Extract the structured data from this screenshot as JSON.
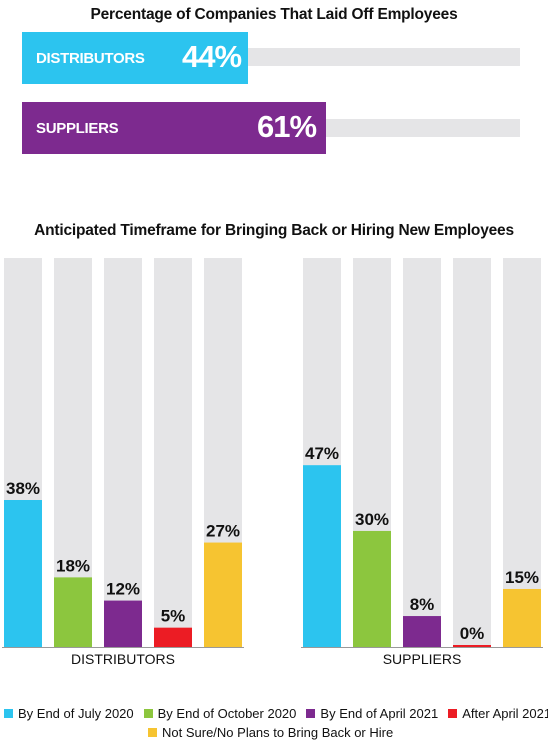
{
  "colors": {
    "track": "#e5e5e7",
    "cyan": "#2cc4ef",
    "green": "#8cc63e",
    "purple": "#7d2a8f",
    "red": "#ec1c24",
    "yellow": "#f6c431"
  },
  "chart_data": [
    {
      "type": "bar",
      "orientation": "horizontal",
      "title": "Percentage of Companies That Laid Off Employees",
      "categories": [
        "DISTRIBUTORS",
        "SUPPLIERS"
      ],
      "values": [
        44,
        61
      ],
      "value_labels": [
        "44%",
        "61%"
      ],
      "colors": [
        "#2cc4ef",
        "#7d2a8f"
      ],
      "xlim": [
        0,
        100
      ]
    },
    {
      "type": "bar",
      "title": "Anticipated Timeframe for Bringing Back or Hiring New Employees",
      "groups": [
        "DISTRIBUTORS",
        "SUPPLIERS"
      ],
      "ylim": [
        0,
        100
      ],
      "series": [
        {
          "name": "By End of July 2020",
          "color": "#2cc4ef",
          "values": [
            38,
            47
          ],
          "labels": [
            "38%",
            "47%"
          ]
        },
        {
          "name": "By End of October 2020",
          "color": "#8cc63e",
          "values": [
            18,
            30
          ],
          "labels": [
            "18%",
            "30%"
          ]
        },
        {
          "name": "By End of April 2021",
          "color": "#7d2a8f",
          "values": [
            12,
            8
          ],
          "labels": [
            "12%",
            "8%"
          ]
        },
        {
          "name": "After April 2021",
          "color": "#ec1c24",
          "values": [
            5,
            0
          ],
          "labels": [
            "5%",
            "0%"
          ]
        },
        {
          "name": "Not Sure/No Plans to Bring Back or Hire",
          "color": "#f6c431",
          "values": [
            27,
            15
          ],
          "labels": [
            "27%",
            "15%"
          ]
        }
      ],
      "legend_position": "bottom"
    }
  ]
}
